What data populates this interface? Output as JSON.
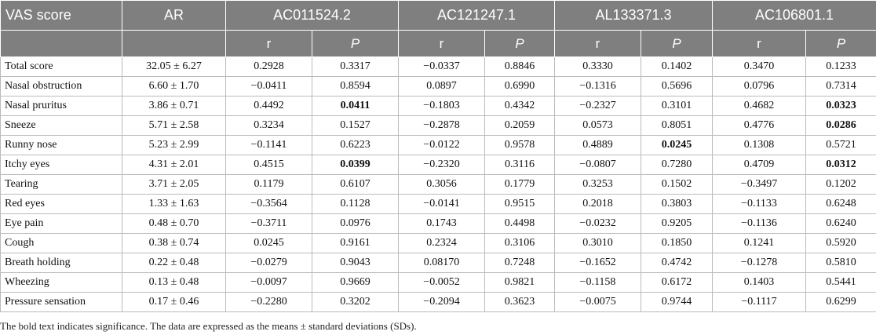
{
  "table": {
    "header": [
      "VAS score",
      "AR",
      "AC011524.2",
      "AC121247.1",
      "AL133371.3",
      "AC106801.1"
    ],
    "subheader": [
      "r",
      "P",
      "r",
      "P",
      "r",
      "P",
      "r",
      "P"
    ],
    "rows": [
      [
        "Total score",
        "32.05 ± 6.27",
        "0.2928",
        "0.3317",
        "−0.0337",
        "0.8846",
        "0.3330",
        "0.1402",
        "0.3470",
        "0.1233"
      ],
      [
        "Nasal obstruction",
        "6.60 ± 1.70",
        "−0.0411",
        "0.8594",
        "0.0897",
        "0.6990",
        "−0.1316",
        "0.5696",
        "0.0796",
        "0.7314"
      ],
      [
        "Nasal pruritus",
        "3.86 ± 0.71",
        "0.4492",
        {
          "text": "0.0411",
          "bold": true
        },
        "−0.1803",
        "0.4342",
        "−0.2327",
        "0.3101",
        "0.4682",
        {
          "text": "0.0323",
          "bold": true
        }
      ],
      [
        "Sneeze",
        "5.71 ± 2.58",
        "0.3234",
        "0.1527",
        "−0.2878",
        "0.2059",
        "0.0573",
        "0.8051",
        "0.4776",
        {
          "text": "0.0286",
          "bold": true
        }
      ],
      [
        "Runny nose",
        "5.23 ± 2.99",
        "−0.1141",
        "0.6223",
        "−0.0122",
        "0.9578",
        "0.4889",
        {
          "text": "0.0245",
          "bold": true
        },
        "0.1308",
        "0.5721"
      ],
      [
        "Itchy eyes",
        "4.31 ± 2.01",
        "0.4515",
        {
          "text": "0.0399",
          "bold": true
        },
        "−0.2320",
        "0.3116",
        "−0.0807",
        "0.7280",
        "0.4709",
        {
          "text": "0.0312",
          "bold": true
        }
      ],
      [
        "Tearing",
        "3.71 ± 2.05",
        "0.1179",
        "0.6107",
        "0.3056",
        "0.1779",
        "0.3253",
        "0.1502",
        "−0.3497",
        "0.1202"
      ],
      [
        "Red eyes",
        "1.33 ± 1.63",
        "−0.3564",
        "0.1128",
        "−0.0141",
        "0.9515",
        "0.2018",
        "0.3803",
        "−0.1133",
        "0.6248"
      ],
      [
        "Eye pain",
        "0.48 ± 0.70",
        "−0.3711",
        "0.0976",
        "0.1743",
        "0.4498",
        "−0.0232",
        "0.9205",
        "−0.1136",
        "0.6240"
      ],
      [
        "Cough",
        "0.38 ± 0.74",
        "0.0245",
        "0.9161",
        "0.2324",
        "0.3106",
        "0.3010",
        "0.1850",
        "0.1241",
        "0.5920"
      ],
      [
        "Breath holding",
        "0.22 ± 0.48",
        "−0.0279",
        "0.9043",
        "0.08170",
        "0.7248",
        "−0.1652",
        "0.4742",
        "−0.1278",
        "0.5810"
      ],
      [
        "Wheezing",
        "0.13 ± 0.48",
        "−0.0097",
        "0.9669",
        "−0.0052",
        "0.9821",
        "−0.1158",
        "0.6172",
        "0.1403",
        "0.5441"
      ],
      [
        "Pressure sensation",
        "0.17 ± 0.46",
        "−0.2280",
        "0.3202",
        "−0.2094",
        "0.3623",
        "−0.0075",
        "0.9744",
        "−0.1117",
        "0.6299"
      ]
    ],
    "footnote": "The bold text indicates significance. The data are expressed as the means ± standard deviations (SDs)."
  }
}
